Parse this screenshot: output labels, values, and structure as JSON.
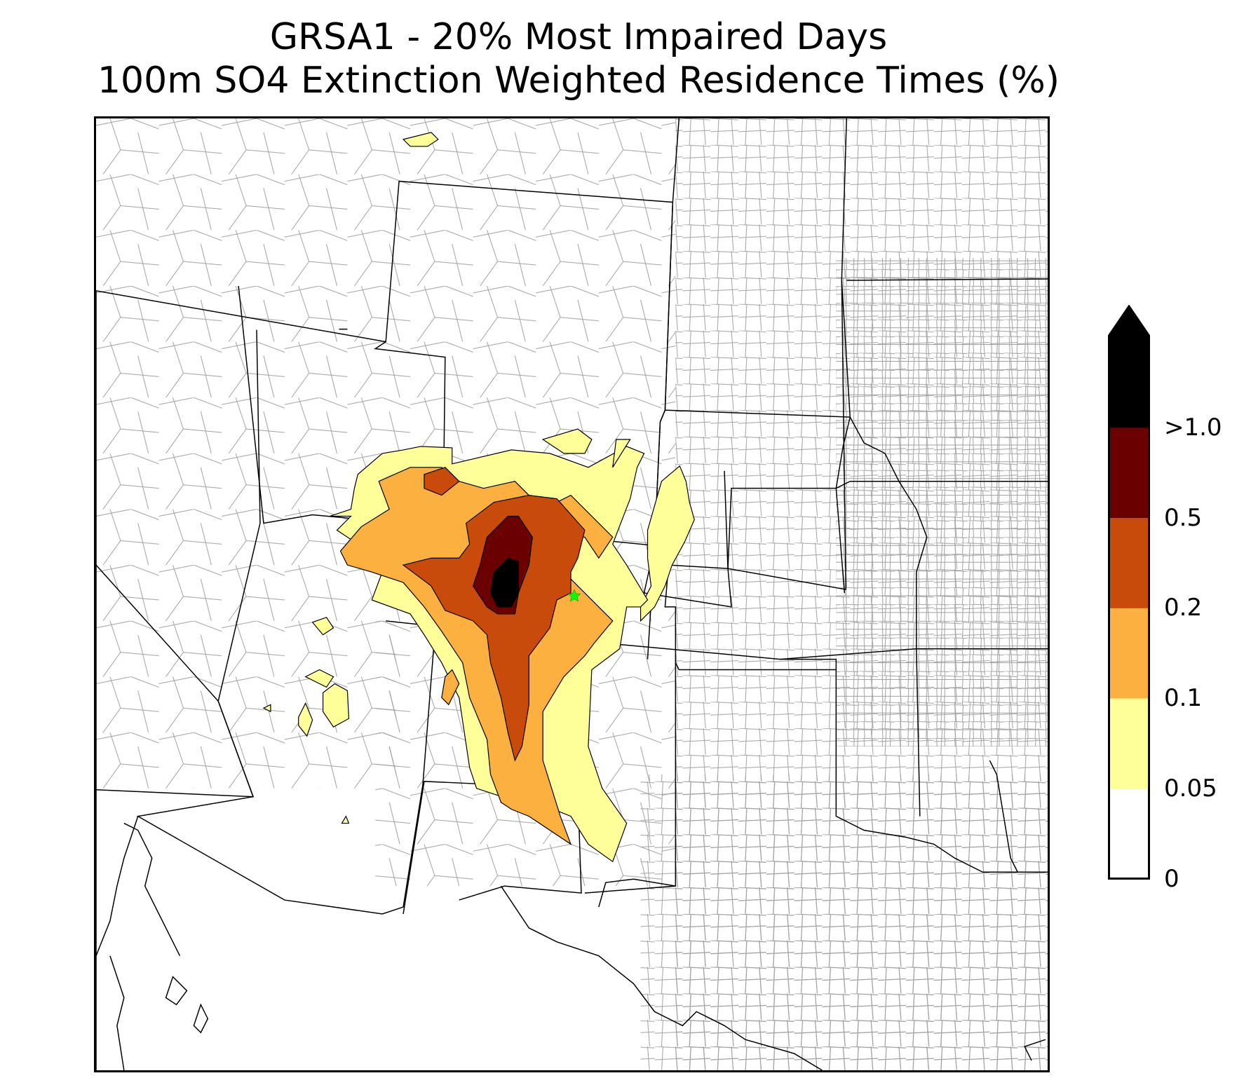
{
  "title": {
    "line1": "GRSA1 - 20% Most Impaired Days",
    "line2": "100m SO4 Extinction Weighted Residence Times (%)"
  },
  "map": {
    "basemap": "US state and county boundaries (western / central US)",
    "receptor_marker": {
      "symbol": "star-icon",
      "color": "#00ff00"
    },
    "contour_outline_color": "#000000",
    "state_line_color": "#000000",
    "county_line_color": "#a0a0a0"
  },
  "legend": {
    "extend": "max",
    "levels": [
      {
        "label": "0",
        "color": "#ffffff"
      },
      {
        "label": "0.05",
        "color": "#ffff99"
      },
      {
        "label": "0.1",
        "color": "#fbb040"
      },
      {
        "label": "0.2",
        "color": "#c84b0c"
      },
      {
        "label": "0.5",
        "color": "#6b0000"
      },
      {
        "label": ">1.0",
        "color": "#000000"
      }
    ],
    "tick_labels": [
      "0",
      "0.05",
      "0.1",
      "0.2",
      "0.5",
      ">1.0"
    ]
  }
}
